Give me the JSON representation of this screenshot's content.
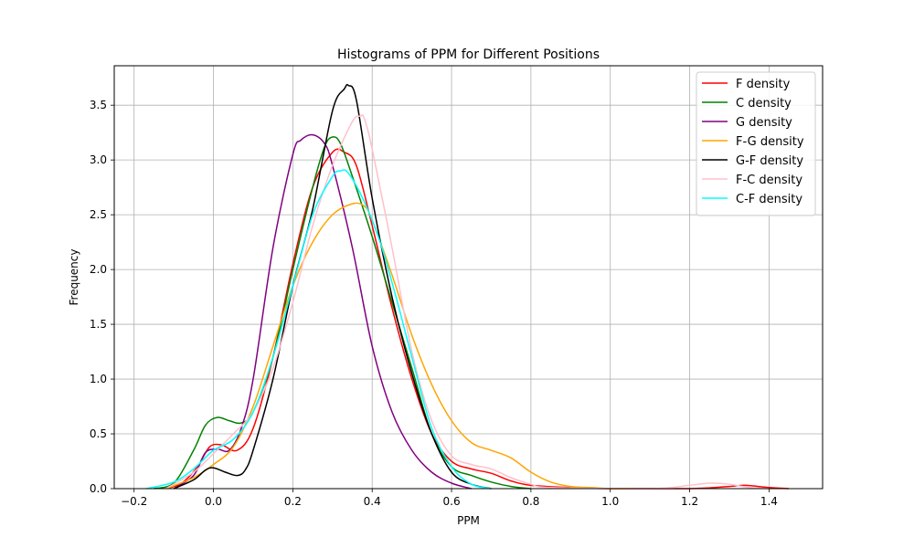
{
  "chart_data": {
    "type": "line",
    "title": "Histograms of PPM for Different Positions",
    "xlabel": "PPM",
    "ylabel": "Frequency",
    "xlim": [
      -0.25,
      1.535
    ],
    "ylim": [
      0,
      3.86
    ],
    "grid": true,
    "legend_position": "top-right",
    "xticks": [
      -0.2,
      0.0,
      0.2,
      0.4,
      0.6,
      0.8,
      1.0,
      1.2,
      1.4
    ],
    "xtick_labels": [
      "−0.2",
      "0.0",
      "0.2",
      "0.4",
      "0.6",
      "0.8",
      "1.0",
      "1.2",
      "1.4"
    ],
    "yticks": [
      0.0,
      0.5,
      1.0,
      1.5,
      2.0,
      2.5,
      3.0,
      3.5
    ],
    "ytick_labels": [
      "0.0",
      "0.5",
      "1.0",
      "1.5",
      "2.0",
      "2.5",
      "3.0",
      "3.5"
    ],
    "series": [
      {
        "name": "F density",
        "color": "#ff0000",
        "x": [
          -0.12,
          -0.08,
          -0.04,
          -0.01,
          0.02,
          0.06,
          0.1,
          0.15,
          0.2,
          0.25,
          0.3,
          0.33,
          0.36,
          0.4,
          0.45,
          0.5,
          0.55,
          0.6,
          0.65,
          0.7,
          0.75,
          0.8,
          0.9,
          1.0,
          1.2,
          1.3,
          1.34,
          1.4,
          1.45
        ],
        "y": [
          0.0,
          0.05,
          0.2,
          0.38,
          0.4,
          0.35,
          0.55,
          1.2,
          2.05,
          2.75,
          3.07,
          3.07,
          2.95,
          2.4,
          1.65,
          1.0,
          0.5,
          0.25,
          0.18,
          0.14,
          0.07,
          0.03,
          0.01,
          0.0,
          0.0,
          0.02,
          0.03,
          0.01,
          0.0
        ]
      },
      {
        "name": "C density",
        "color": "#008000",
        "x": [
          -0.15,
          -0.1,
          -0.05,
          -0.02,
          0.01,
          0.04,
          0.07,
          0.1,
          0.15,
          0.2,
          0.25,
          0.28,
          0.3,
          0.32,
          0.35,
          0.4,
          0.45,
          0.5,
          0.55,
          0.6,
          0.65,
          0.7,
          0.75,
          0.8
        ],
        "y": [
          0.0,
          0.05,
          0.35,
          0.58,
          0.65,
          0.62,
          0.6,
          0.7,
          1.2,
          2.0,
          2.75,
          3.12,
          3.21,
          3.15,
          2.85,
          2.3,
          1.7,
          1.1,
          0.5,
          0.2,
          0.12,
          0.06,
          0.02,
          0.0
        ]
      },
      {
        "name": "G density",
        "color": "#800080",
        "x": [
          -0.1,
          -0.05,
          -0.02,
          0.01,
          0.04,
          0.07,
          0.1,
          0.15,
          0.2,
          0.22,
          0.25,
          0.28,
          0.3,
          0.35,
          0.4,
          0.45,
          0.5,
          0.55,
          0.6,
          0.65
        ],
        "y": [
          0.0,
          0.12,
          0.33,
          0.36,
          0.35,
          0.55,
          1.0,
          2.2,
          3.05,
          3.18,
          3.23,
          3.15,
          2.95,
          2.2,
          1.3,
          0.7,
          0.35,
          0.15,
          0.05,
          0.0
        ]
      },
      {
        "name": "F-G density",
        "color": "#ffa500",
        "x": [
          -0.12,
          -0.05,
          0.0,
          0.05,
          0.1,
          0.15,
          0.2,
          0.25,
          0.3,
          0.35,
          0.38,
          0.4,
          0.45,
          0.5,
          0.55,
          0.6,
          0.65,
          0.7,
          0.75,
          0.8,
          0.85,
          0.9,
          0.95,
          1.0,
          1.05
        ],
        "y": [
          0.0,
          0.1,
          0.22,
          0.38,
          0.75,
          1.3,
          1.85,
          2.25,
          2.5,
          2.6,
          2.58,
          2.45,
          1.95,
          1.4,
          0.95,
          0.62,
          0.42,
          0.35,
          0.28,
          0.15,
          0.06,
          0.02,
          0.01,
          0.0,
          0.0
        ]
      },
      {
        "name": "G-F density",
        "color": "#000000",
        "x": [
          -0.1,
          -0.05,
          -0.02,
          0.0,
          0.03,
          0.06,
          0.08,
          0.1,
          0.15,
          0.2,
          0.25,
          0.3,
          0.33,
          0.34,
          0.36,
          0.4,
          0.45,
          0.5,
          0.55,
          0.6,
          0.65,
          0.7
        ],
        "y": [
          0.0,
          0.08,
          0.17,
          0.19,
          0.15,
          0.12,
          0.17,
          0.35,
          1.0,
          1.85,
          2.55,
          3.45,
          3.65,
          3.68,
          3.55,
          2.65,
          1.75,
          1.05,
          0.5,
          0.15,
          0.04,
          0.0
        ]
      },
      {
        "name": "F-C density",
        "color": "#ffc0cb",
        "x": [
          -0.12,
          -0.05,
          0.0,
          0.05,
          0.1,
          0.15,
          0.2,
          0.25,
          0.3,
          0.35,
          0.37,
          0.38,
          0.4,
          0.45,
          0.5,
          0.55,
          0.6,
          0.65,
          0.7,
          0.75,
          0.8,
          0.85,
          1.1,
          1.2,
          1.25,
          1.3,
          1.35,
          1.4
        ],
        "y": [
          0.0,
          0.15,
          0.32,
          0.5,
          0.7,
          1.1,
          1.7,
          2.4,
          2.95,
          3.35,
          3.4,
          3.38,
          3.1,
          2.2,
          1.25,
          0.62,
          0.3,
          0.22,
          0.18,
          0.1,
          0.04,
          0.01,
          0.0,
          0.03,
          0.05,
          0.04,
          0.01,
          0.0
        ]
      },
      {
        "name": "C-F density",
        "color": "#00ffff",
        "x": [
          -0.17,
          -0.1,
          -0.05,
          0.0,
          0.05,
          0.1,
          0.15,
          0.2,
          0.25,
          0.3,
          0.32,
          0.34,
          0.38,
          0.42,
          0.46,
          0.5,
          0.55,
          0.6,
          0.65,
          0.7
        ],
        "y": [
          0.0,
          0.06,
          0.18,
          0.35,
          0.45,
          0.7,
          1.2,
          1.85,
          2.5,
          2.85,
          2.9,
          2.88,
          2.62,
          2.25,
          1.75,
          1.2,
          0.55,
          0.2,
          0.04,
          0.0
        ]
      }
    ]
  }
}
